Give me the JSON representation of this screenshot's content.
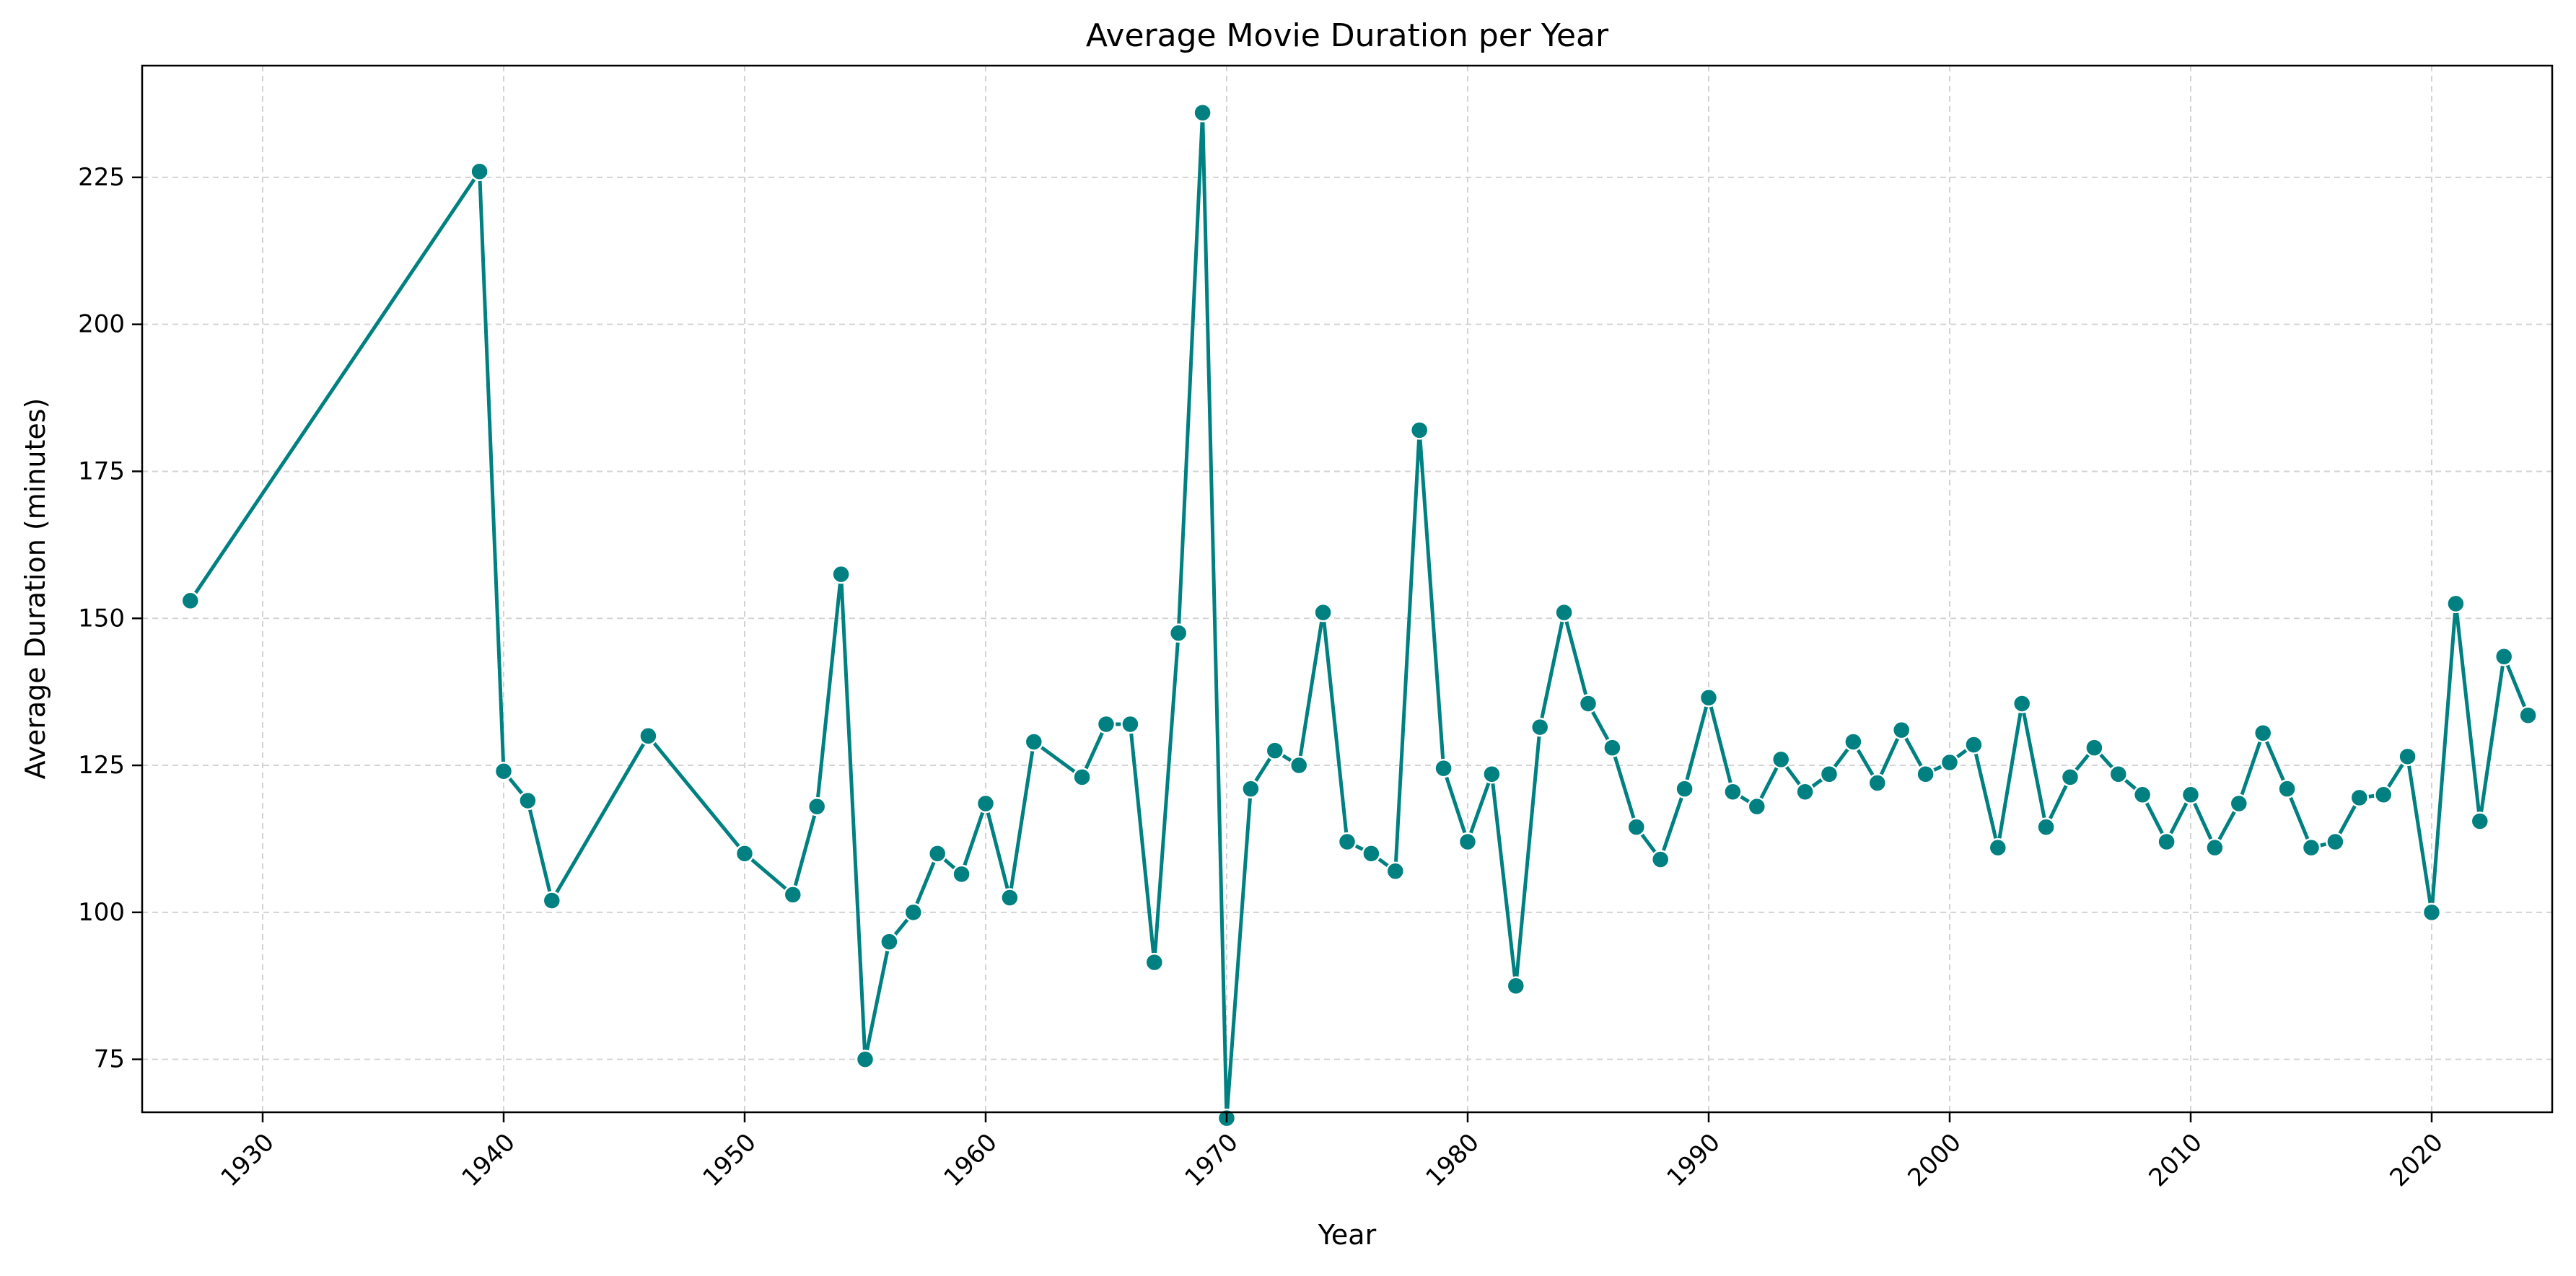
{
  "chart_data": {
    "type": "line",
    "title": "Average Movie Duration per Year",
    "xlabel": "Year",
    "ylabel": "Average Duration (minutes)",
    "xlim": [
      1925,
      2025
    ],
    "ylim": [
      66,
      244
    ],
    "xticks": [
      1930,
      1940,
      1950,
      1960,
      1970,
      1980,
      1990,
      2000,
      2010,
      2020
    ],
    "yticks": [
      75,
      100,
      125,
      150,
      175,
      200,
      225
    ],
    "xtick_rotation_deg": 45,
    "grid": true,
    "grid_style": "dashed",
    "marker": "circle",
    "color": "#008080",
    "series": [
      {
        "x": [
          1927,
          1939,
          1940,
          1941,
          1942,
          1946,
          1950,
          1952,
          1953,
          1954,
          1955,
          1956,
          1957,
          1958,
          1959,
          1960,
          1961,
          1962,
          1964,
          1965,
          1966,
          1967,
          1968,
          1969,
          1970,
          1971,
          1972,
          1973,
          1974,
          1975,
          1976,
          1977,
          1978,
          1979,
          1980,
          1981,
          1982,
          1983,
          1984,
          1985,
          1986,
          1987,
          1988,
          1989,
          1990,
          1991,
          1992,
          1993,
          1994,
          1995,
          1996,
          1997,
          1998,
          1999,
          2000,
          2001,
          2002,
          2003,
          2004,
          2005,
          2006,
          2007,
          2008,
          2009,
          2010,
          2011,
          2012,
          2013,
          2014,
          2015,
          2016,
          2017,
          2018,
          2019,
          2020,
          2021,
          2022,
          2023,
          2024
        ],
        "y": [
          153,
          226,
          124,
          119,
          102,
          130,
          110,
          103,
          118,
          157.5,
          75,
          95,
          100,
          110,
          106.5,
          118.5,
          102.5,
          129,
          123,
          132,
          132,
          91.5,
          147.5,
          236,
          65,
          121,
          127.5,
          125,
          151,
          112,
          110,
          107,
          182,
          124.5,
          112,
          123.5,
          87.5,
          131.5,
          151,
          135.5,
          128,
          114.5,
          109,
          121,
          136.5,
          120.5,
          118,
          126,
          120.5,
          123.5,
          129,
          122,
          131,
          123.5,
          125.5,
          128.5,
          111,
          135.5,
          114.5,
          123,
          128,
          123.5,
          120,
          112,
          120,
          111,
          118.5,
          130.5,
          121,
          111,
          112,
          119.5,
          120,
          126.5,
          100,
          152.5,
          115.5,
          143.5,
          133.5
        ]
      }
    ]
  }
}
